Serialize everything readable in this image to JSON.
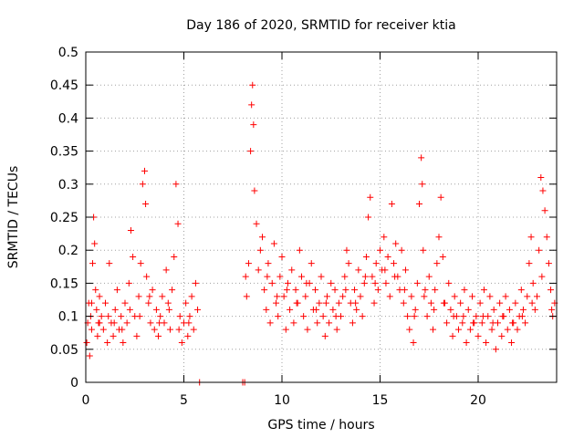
{
  "chart_data": {
    "type": "scatter",
    "title": "Day 186 of 2020, SRMTID for receiver ktia",
    "xlabel": "GPS time / hours",
    "ylabel": "SRMTID / TECUs",
    "xlim": [
      0,
      24
    ],
    "ylim": [
      0,
      0.5
    ],
    "xticks": [
      0,
      5,
      10,
      15,
      20
    ],
    "yticks": [
      0,
      0.05,
      0.1,
      0.15,
      0.2,
      0.25,
      0.3,
      0.35,
      0.4,
      0.45,
      0.5
    ],
    "grid": true,
    "marker": "+",
    "color": "#ff0000",
    "series": [
      {
        "name": "SRMTID",
        "points": [
          [
            0.05,
            0.06
          ],
          [
            0.1,
            0.09
          ],
          [
            0.15,
            0.12
          ],
          [
            0.2,
            0.04
          ],
          [
            0.25,
            0.1
          ],
          [
            0.3,
            0.08
          ],
          [
            0.35,
            0.18
          ],
          [
            0.4,
            0.25
          ],
          [
            0.45,
            0.21
          ],
          [
            0.5,
            0.14
          ],
          [
            0.55,
            0.11
          ],
          [
            0.6,
            0.07
          ],
          [
            0.65,
            0.09
          ],
          [
            0.7,
            0.13
          ],
          [
            0.8,
            0.1
          ],
          [
            0.9,
            0.08
          ],
          [
            1.0,
            0.12
          ],
          [
            1.1,
            0.06
          ],
          [
            1.2,
            0.18
          ],
          [
            1.3,
            0.09
          ],
          [
            1.4,
            0.07
          ],
          [
            1.5,
            0.11
          ],
          [
            1.6,
            0.14
          ],
          [
            1.7,
            0.08
          ],
          [
            1.8,
            0.1
          ],
          [
            1.9,
            0.06
          ],
          [
            2.0,
            0.12
          ],
          [
            2.1,
            0.09
          ],
          [
            2.2,
            0.15
          ],
          [
            2.3,
            0.23
          ],
          [
            2.4,
            0.19
          ],
          [
            2.5,
            0.1
          ],
          [
            2.6,
            0.07
          ],
          [
            2.7,
            0.13
          ],
          [
            2.8,
            0.18
          ],
          [
            2.9,
            0.3
          ],
          [
            3.0,
            0.32
          ],
          [
            3.05,
            0.27
          ],
          [
            3.1,
            0.16
          ],
          [
            3.2,
            0.12
          ],
          [
            3.3,
            0.09
          ],
          [
            3.4,
            0.14
          ],
          [
            3.5,
            0.08
          ],
          [
            3.6,
            0.11
          ],
          [
            3.7,
            0.07
          ],
          [
            3.8,
            0.1
          ],
          [
            3.9,
            0.13
          ],
          [
            4.0,
            0.09
          ],
          [
            4.1,
            0.17
          ],
          [
            4.2,
            0.12
          ],
          [
            4.3,
            0.08
          ],
          [
            4.4,
            0.14
          ],
          [
            4.5,
            0.19
          ],
          [
            4.6,
            0.3
          ],
          [
            4.7,
            0.24
          ],
          [
            4.8,
            0.1
          ],
          [
            4.9,
            0.06
          ],
          [
            5.0,
            0.09
          ],
          [
            5.1,
            0.12
          ],
          [
            5.2,
            0.07
          ],
          [
            5.3,
            0.1
          ],
          [
            5.4,
            0.13
          ],
          [
            5.5,
            0.08
          ],
          [
            5.6,
            0.15
          ],
          [
            5.7,
            0.11
          ],
          [
            5.8,
            0.0
          ],
          [
            8.0,
            0.0
          ],
          [
            8.1,
            0.0
          ],
          [
            8.15,
            0.16
          ],
          [
            8.2,
            0.13
          ],
          [
            8.3,
            0.18
          ],
          [
            8.4,
            0.35
          ],
          [
            8.45,
            0.42
          ],
          [
            8.5,
            0.45
          ],
          [
            8.55,
            0.39
          ],
          [
            8.6,
            0.29
          ],
          [
            8.7,
            0.24
          ],
          [
            8.8,
            0.17
          ],
          [
            8.9,
            0.2
          ],
          [
            9.0,
            0.22
          ],
          [
            9.1,
            0.14
          ],
          [
            9.2,
            0.11
          ],
          [
            9.3,
            0.18
          ],
          [
            9.4,
            0.09
          ],
          [
            9.5,
            0.15
          ],
          [
            9.6,
            0.21
          ],
          [
            9.7,
            0.12
          ],
          [
            9.8,
            0.1
          ],
          [
            9.9,
            0.16
          ],
          [
            10.0,
            0.19
          ],
          [
            10.1,
            0.13
          ],
          [
            10.2,
            0.08
          ],
          [
            10.3,
            0.15
          ],
          [
            10.4,
            0.11
          ],
          [
            10.5,
            0.17
          ],
          [
            10.6,
            0.09
          ],
          [
            10.7,
            0.14
          ],
          [
            10.8,
            0.12
          ],
          [
            10.9,
            0.2
          ],
          [
            11.0,
            0.16
          ],
          [
            11.1,
            0.1
          ],
          [
            11.2,
            0.13
          ],
          [
            11.3,
            0.08
          ],
          [
            11.4,
            0.15
          ],
          [
            11.5,
            0.18
          ],
          [
            11.6,
            0.11
          ],
          [
            11.7,
            0.14
          ],
          [
            11.8,
            0.09
          ],
          [
            11.9,
            0.12
          ],
          [
            12.0,
            0.16
          ],
          [
            12.1,
            0.1
          ],
          [
            12.2,
            0.07
          ],
          [
            12.3,
            0.13
          ],
          [
            12.4,
            0.09
          ],
          [
            12.5,
            0.15
          ],
          [
            12.6,
            0.11
          ],
          [
            12.7,
            0.14
          ],
          [
            12.8,
            0.08
          ],
          [
            12.9,
            0.12
          ],
          [
            13.0,
            0.1
          ],
          [
            13.1,
            0.13
          ],
          [
            13.2,
            0.16
          ],
          [
            13.3,
            0.2
          ],
          [
            13.4,
            0.18
          ],
          [
            13.5,
            0.12
          ],
          [
            13.6,
            0.09
          ],
          [
            13.7,
            0.14
          ],
          [
            13.8,
            0.11
          ],
          [
            13.9,
            0.17
          ],
          [
            14.0,
            0.13
          ],
          [
            14.1,
            0.1
          ],
          [
            14.2,
            0.15
          ],
          [
            14.3,
            0.19
          ],
          [
            14.4,
            0.25
          ],
          [
            14.5,
            0.28
          ],
          [
            14.6,
            0.16
          ],
          [
            14.7,
            0.12
          ],
          [
            14.8,
            0.18
          ],
          [
            14.9,
            0.14
          ],
          [
            15.0,
            0.2
          ],
          [
            15.1,
            0.17
          ],
          [
            15.2,
            0.22
          ],
          [
            15.3,
            0.15
          ],
          [
            15.4,
            0.19
          ],
          [
            15.5,
            0.13
          ],
          [
            15.6,
            0.27
          ],
          [
            15.7,
            0.18
          ],
          [
            15.8,
            0.21
          ],
          [
            15.9,
            0.16
          ],
          [
            16.0,
            0.14
          ],
          [
            16.1,
            0.2
          ],
          [
            16.2,
            0.12
          ],
          [
            16.3,
            0.17
          ],
          [
            16.4,
            0.1
          ],
          [
            16.5,
            0.08
          ],
          [
            16.6,
            0.13
          ],
          [
            16.7,
            0.06
          ],
          [
            16.8,
            0.11
          ],
          [
            16.9,
            0.15
          ],
          [
            17.0,
            0.27
          ],
          [
            17.1,
            0.34
          ],
          [
            17.15,
            0.3
          ],
          [
            17.2,
            0.2
          ],
          [
            17.3,
            0.14
          ],
          [
            17.4,
            0.1
          ],
          [
            17.5,
            0.16
          ],
          [
            17.6,
            0.12
          ],
          [
            17.7,
            0.08
          ],
          [
            17.8,
            0.14
          ],
          [
            17.9,
            0.18
          ],
          [
            18.0,
            0.22
          ],
          [
            18.1,
            0.28
          ],
          [
            18.2,
            0.19
          ],
          [
            18.3,
            0.12
          ],
          [
            18.4,
            0.09
          ],
          [
            18.5,
            0.15
          ],
          [
            18.6,
            0.11
          ],
          [
            18.7,
            0.07
          ],
          [
            18.8,
            0.13
          ],
          [
            18.9,
            0.1
          ],
          [
            19.0,
            0.08
          ],
          [
            19.1,
            0.12
          ],
          [
            19.2,
            0.09
          ],
          [
            19.3,
            0.14
          ],
          [
            19.4,
            0.06
          ],
          [
            19.5,
            0.11
          ],
          [
            19.6,
            0.08
          ],
          [
            19.7,
            0.13
          ],
          [
            19.8,
            0.09
          ],
          [
            19.9,
            0.1
          ],
          [
            20.0,
            0.07
          ],
          [
            20.1,
            0.12
          ],
          [
            20.2,
            0.09
          ],
          [
            20.3,
            0.14
          ],
          [
            20.4,
            0.06
          ],
          [
            20.5,
            0.1
          ],
          [
            20.6,
            0.13
          ],
          [
            20.7,
            0.08
          ],
          [
            20.8,
            0.11
          ],
          [
            20.9,
            0.05
          ],
          [
            21.0,
            0.09
          ],
          [
            21.1,
            0.12
          ],
          [
            21.2,
            0.07
          ],
          [
            21.3,
            0.1
          ],
          [
            21.4,
            0.13
          ],
          [
            21.5,
            0.08
          ],
          [
            21.6,
            0.11
          ],
          [
            21.7,
            0.06
          ],
          [
            21.8,
            0.09
          ],
          [
            21.9,
            0.12
          ],
          [
            22.0,
            0.08
          ],
          [
            22.1,
            0.1
          ],
          [
            22.2,
            0.14
          ],
          [
            22.3,
            0.11
          ],
          [
            22.4,
            0.09
          ],
          [
            22.5,
            0.13
          ],
          [
            22.6,
            0.18
          ],
          [
            22.7,
            0.22
          ],
          [
            22.8,
            0.15
          ],
          [
            22.9,
            0.11
          ],
          [
            23.0,
            0.13
          ],
          [
            23.1,
            0.2
          ],
          [
            23.2,
            0.31
          ],
          [
            23.3,
            0.29
          ],
          [
            23.4,
            0.26
          ],
          [
            23.5,
            0.22
          ],
          [
            23.6,
            0.18
          ],
          [
            23.7,
            0.14
          ],
          [
            23.8,
            0.1
          ],
          [
            23.9,
            0.12
          ],
          [
            0.3,
            0.12
          ],
          [
            0.7,
            0.09
          ],
          [
            1.15,
            0.1
          ],
          [
            1.45,
            0.09
          ],
          [
            1.85,
            0.08
          ],
          [
            2.25,
            0.11
          ],
          [
            2.75,
            0.1
          ],
          [
            3.25,
            0.13
          ],
          [
            3.75,
            0.09
          ],
          [
            4.25,
            0.11
          ],
          [
            4.75,
            0.08
          ],
          [
            5.25,
            0.09
          ],
          [
            9.25,
            0.16
          ],
          [
            9.75,
            0.13
          ],
          [
            10.25,
            0.14
          ],
          [
            10.75,
            0.12
          ],
          [
            11.25,
            0.15
          ],
          [
            11.75,
            0.11
          ],
          [
            12.25,
            0.12
          ],
          [
            12.75,
            0.1
          ],
          [
            13.25,
            0.14
          ],
          [
            13.75,
            0.12
          ],
          [
            14.25,
            0.16
          ],
          [
            14.75,
            0.15
          ],
          [
            15.25,
            0.17
          ],
          [
            15.75,
            0.16
          ],
          [
            16.25,
            0.14
          ],
          [
            16.75,
            0.1
          ],
          [
            17.25,
            0.13
          ],
          [
            17.75,
            0.11
          ],
          [
            18.25,
            0.12
          ],
          [
            18.75,
            0.1
          ],
          [
            19.25,
            0.1
          ],
          [
            19.75,
            0.09
          ],
          [
            20.25,
            0.1
          ],
          [
            20.75,
            0.09
          ],
          [
            21.25,
            0.1
          ],
          [
            21.75,
            0.09
          ],
          [
            22.25,
            0.1
          ],
          [
            22.75,
            0.12
          ],
          [
            23.25,
            0.16
          ],
          [
            23.75,
            0.11
          ]
        ]
      }
    ]
  }
}
